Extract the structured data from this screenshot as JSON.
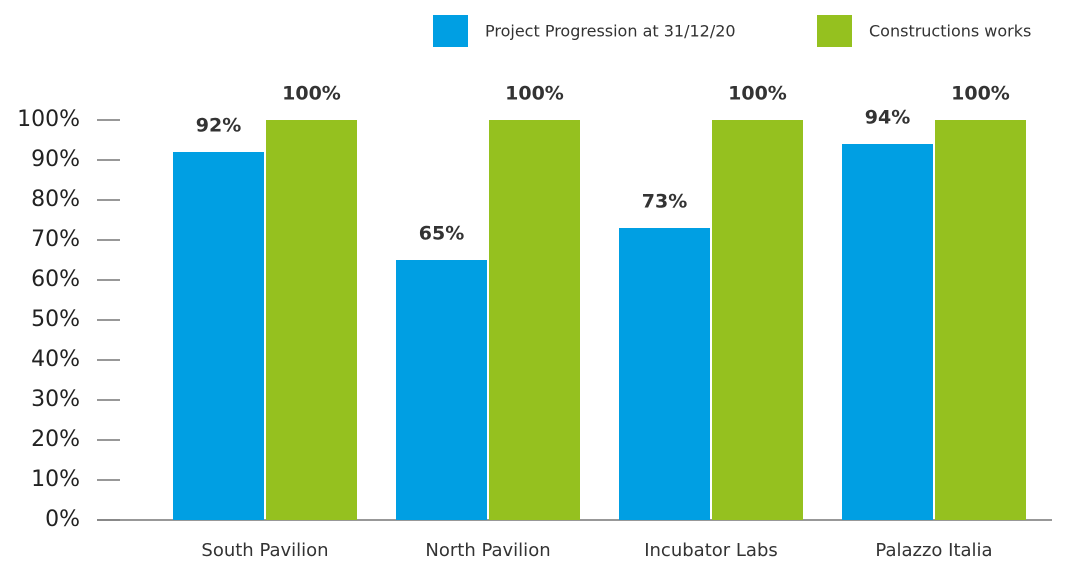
{
  "chart_data": {
    "type": "bar",
    "categories": [
      "South Pavilion",
      "North Pavilion",
      "Incubator Labs",
      "Palazzo Italia"
    ],
    "series": [
      {
        "name": "Project Progression at 31/12/20",
        "color": "#009fe3",
        "values": [
          92,
          65,
          73,
          94
        ],
        "value_labels": [
          "92%",
          "65%",
          "73%",
          "94%"
        ]
      },
      {
        "name": "Constructions works",
        "color": "#95c11f",
        "values": [
          100,
          100,
          100,
          100
        ],
        "value_labels": [
          "100%",
          "100%",
          "100%",
          "100%"
        ]
      }
    ],
    "ylim": [
      0,
      100
    ],
    "yticks": [
      {
        "value": 0,
        "label": "0%"
      },
      {
        "value": 10,
        "label": "10%"
      },
      {
        "value": 20,
        "label": "20%"
      },
      {
        "value": 30,
        "label": "30%"
      },
      {
        "value": 40,
        "label": "40%"
      },
      {
        "value": 50,
        "label": "50%"
      },
      {
        "value": 60,
        "label": "60%"
      },
      {
        "value": 70,
        "label": "70%"
      },
      {
        "value": 80,
        "label": "80%"
      },
      {
        "value": 90,
        "label": "90%"
      },
      {
        "value": 100,
        "label": "100%"
      }
    ],
    "legend": "top-right",
    "grid": false
  }
}
